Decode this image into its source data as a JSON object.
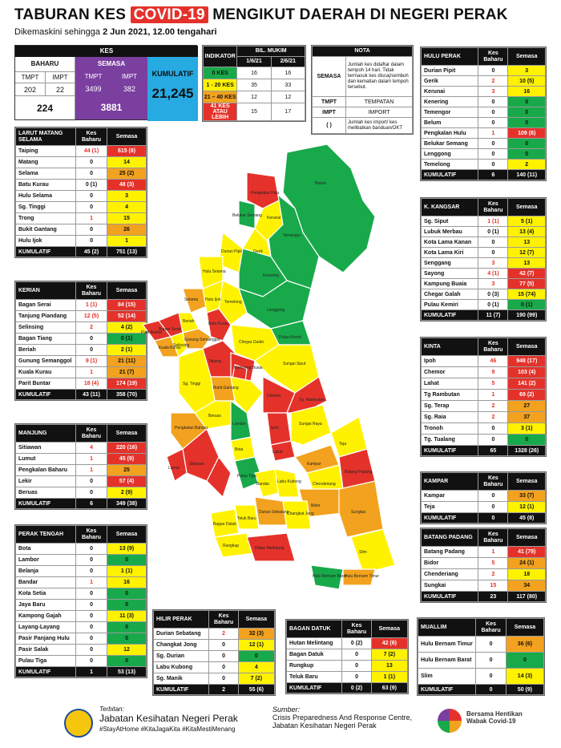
{
  "header": {
    "title_pre": "TABURAN KES",
    "title_hl": "COVID-19",
    "title_post": "MENGIKUT DAERAH DI NEGERI PERAK",
    "subtitle_pre": "Dikemaskini sehingga",
    "subtitle_bold": "2 Jun 2021, 12.00 tengahari"
  },
  "kes": {
    "title": "KES",
    "baharu": "BAHARU",
    "semasa": "SEMASA",
    "kumulatif_label": "KUMULATIF",
    "h_tmpt": "TMPT",
    "h_impt": "IMPT",
    "b_tmpt": "202",
    "b_impt": "22",
    "s_tmpt": "3499",
    "s_impt": "382",
    "b_total": "224",
    "s_total": "3881",
    "kumulatif": "21,245"
  },
  "indicator": {
    "h_ind": "INDIKATOR",
    "h_bil": "BIL. MUKIM",
    "d1": "1/6/21",
    "d2": "2/6/21",
    "rows": [
      {
        "label": "0 KES",
        "a": "16",
        "b": "16"
      },
      {
        "label": "1 - 20 KES",
        "a": "35",
        "b": "33"
      },
      {
        "label": "21 – 40 KES",
        "a": "12",
        "b": "12"
      },
      {
        "label": "41 KES ATAU LEBIH",
        "a": "15",
        "b": "17"
      }
    ]
  },
  "nota": {
    "title": "NOTA",
    "rows": [
      {
        "k": "SEMASA",
        "v": "Jumlah kes didaftar dalam tempoh 14 hari. Tidak termasuk kes discaj/sembuh dan kematian dalam tempoh tersebut."
      },
      {
        "k": "TMPT",
        "v": "TEMPATAN"
      },
      {
        "k": "IMPT",
        "v": "IMPORT"
      },
      {
        "k": "( )",
        "v": "Jumlah kes import/ kes melibatkan banduan/OKT"
      }
    ]
  },
  "col_baharu": "Kes Baharu",
  "col_semasa": "Semasa",
  "districts": {
    "larut": {
      "title": "LARUT MATANG SELAMA",
      "rows": [
        [
          "Taiping",
          "44 (1)",
          "615 (8)",
          "r"
        ],
        [
          "Matang",
          "0",
          "14",
          "y"
        ],
        [
          "Selama",
          "0",
          "25 (2)",
          "o"
        ],
        [
          "Batu Kurau",
          "0 (1)",
          "48 (3)",
          "r"
        ],
        [
          "Hulu Selama",
          "0",
          "3",
          "y"
        ],
        [
          "Sg. Tinggi",
          "0",
          "4",
          "y"
        ],
        [
          "Trong",
          "1",
          "15",
          "y"
        ],
        [
          "Bukit Gantang",
          "0",
          "26",
          "o"
        ],
        [
          "Hulu Ijok",
          "0",
          "1",
          "y"
        ]
      ],
      "total": [
        "KUMULATIF",
        "45 (2)",
        "751 (13)"
      ]
    },
    "kerian": {
      "title": "KERIAN",
      "rows": [
        [
          "Bagan Serai",
          "1 (1)",
          "84 (15)",
          "r"
        ],
        [
          "Tanjung Piandang",
          "12 (5)",
          "52 (14)",
          "r"
        ],
        [
          "Selinsing",
          "2",
          "4 (2)",
          "y"
        ],
        [
          "Bagan Tiang",
          "0",
          "0 (1)",
          "g"
        ],
        [
          "Beriah",
          "0",
          "2 (1)",
          "y"
        ],
        [
          "Gunung Semanggol",
          "9 (1)",
          "21 (11)",
          "o"
        ],
        [
          "Kuala Kurau",
          "1",
          "21 (7)",
          "o"
        ],
        [
          "Parit Buntar",
          "18 (4)",
          "174 (19)",
          "r"
        ]
      ],
      "total": [
        "KUMULATIF",
        "43 (11)",
        "358 (70)"
      ]
    },
    "manjung": {
      "title": "MANJUNG",
      "rows": [
        [
          "Sitiawan",
          "4",
          "220 (16)",
          "r"
        ],
        [
          "Lumut",
          "1",
          "45 (9)",
          "r"
        ],
        [
          "Pengkalan Baharu",
          "1",
          "25",
          "o"
        ],
        [
          "Lekir",
          "0",
          "57 (4)",
          "r"
        ],
        [
          "Beruas",
          "0",
          "2 (9)",
          "y"
        ]
      ],
      "total": [
        "KUMULATIF",
        "6",
        "349 (38)"
      ]
    },
    "perak_tengah": {
      "title": "PERAK TENGAH",
      "rows": [
        [
          "Bota",
          "0",
          "13 (9)",
          "y"
        ],
        [
          "Lambor",
          "0",
          "0",
          "g"
        ],
        [
          "Belanja",
          "0",
          "1 (1)",
          "y"
        ],
        [
          "Bandar",
          "1",
          "16",
          "y"
        ],
        [
          "Kota Setia",
          "0",
          "0",
          "g"
        ],
        [
          "Jaya Baru",
          "0",
          "0",
          "g"
        ],
        [
          "Kampong Gajah",
          "0",
          "11 (3)",
          "y"
        ],
        [
          "Layang-Layang",
          "0",
          "0",
          "g"
        ],
        [
          "Pasir Panjang Hulu",
          "0",
          "0",
          "g"
        ],
        [
          "Pasir Salak",
          "0",
          "12",
          "y"
        ],
        [
          "Pulau Tiga",
          "0",
          "0",
          "g"
        ]
      ],
      "total": [
        "KUMULATIF",
        "1",
        "53 (13)"
      ]
    },
    "hulu_perak": {
      "title": "HULU PERAK",
      "rows": [
        [
          "Durian Pipit",
          "0",
          "3",
          "y"
        ],
        [
          "Gerik",
          "2",
          "10 (5)",
          "y"
        ],
        [
          "Kerunai",
          "3",
          "16",
          "y"
        ],
        [
          "Kenering",
          "0",
          "0",
          "g"
        ],
        [
          "Temengor",
          "0",
          "0",
          "g"
        ],
        [
          "Belum",
          "0",
          "0",
          "g"
        ],
        [
          "Pengkalan Hulu",
          "1",
          "109 (6)",
          "r"
        ],
        [
          "Belukar Semang",
          "0",
          "0",
          "g"
        ],
        [
          "Lenggong",
          "0",
          "0",
          "g"
        ],
        [
          "Temelong",
          "0",
          "2",
          "y"
        ]
      ],
      "total": [
        "KUMULATIF",
        "6",
        "140 (11)"
      ]
    },
    "kkangsar": {
      "title": "K. KANGSAR",
      "rows": [
        [
          "Sg. Siput",
          "1 (1)",
          "5 (1)",
          "y"
        ],
        [
          "Lubuk Merbau",
          "0 (1)",
          "13 (4)",
          "y"
        ],
        [
          "Kota Lama Kanan",
          "0",
          "13",
          "y"
        ],
        [
          "Kota Lama Kiri",
          "0",
          "12 (7)",
          "y"
        ],
        [
          "Senggang",
          "3",
          "13",
          "y"
        ],
        [
          "Sayong",
          "4 (1)",
          "42 (7)",
          "r"
        ],
        [
          "Kampung Buaia",
          "3",
          "77 (5)",
          "r"
        ],
        [
          "Chegar Galah",
          "0 (3)",
          "15 (74)",
          "y"
        ],
        [
          "Pulau Kemiri",
          "0 (1)",
          "0 (1)",
          "g"
        ]
      ],
      "total": [
        "KUMULATIF",
        "11 (7)",
        "190 (99)"
      ]
    },
    "kinta": {
      "title": "KINTA",
      "rows": [
        [
          "Ipoh",
          "46",
          "948 (17)",
          "r"
        ],
        [
          "Chemor",
          "9",
          "103 (4)",
          "r"
        ],
        [
          "Lahat",
          "5",
          "141 (2)",
          "r"
        ],
        [
          "Tg Rambutan",
          "1",
          "69 (2)",
          "r"
        ],
        [
          "Sg. Terap",
          "2",
          "27",
          "o"
        ],
        [
          "Sg. Raia",
          "2",
          "37",
          "o"
        ],
        [
          "Tronoh",
          "0",
          "3 (1)",
          "y"
        ],
        [
          "Tg. Tualang",
          "0",
          "0",
          "g"
        ]
      ],
      "total": [
        "KUMULATIF",
        "65",
        "1328 (26)"
      ]
    },
    "kampar": {
      "title": "KAMPAR",
      "rows": [
        [
          "Kampar",
          "0",
          "33 (7)",
          "o"
        ],
        [
          "Teja",
          "0",
          "12 (1)",
          "y"
        ]
      ],
      "total": [
        "KUMULATIF",
        "0",
        "45 (8)"
      ]
    },
    "batang_padang": {
      "title": "BATANG PADANG",
      "rows": [
        [
          "Batang Padang",
          "1",
          "41 (79)",
          "r"
        ],
        [
          "Bidor",
          "5",
          "24 (1)",
          "o"
        ],
        [
          "Chenderiang",
          "2",
          "18",
          "y"
        ],
        [
          "Sungkai",
          "15",
          "34",
          "o"
        ]
      ],
      "total": [
        "KUMULATIF",
        "23",
        "117 (80)"
      ]
    },
    "hilir_perak": {
      "title": "HILIR PERAK",
      "rows": [
        [
          "Durian Sebatang",
          "2",
          "32 (3)",
          "o"
        ],
        [
          "Changkat Jong",
          "0",
          "12 (1)",
          "y"
        ],
        [
          "Sg. Durian",
          "0",
          "0",
          "g"
        ],
        [
          "Labu Kubong",
          "0",
          "4",
          "y"
        ],
        [
          "Sg. Manik",
          "0",
          "7 (2)",
          "y"
        ]
      ],
      "total": [
        "KUMULATIF",
        "2",
        "55 (6)"
      ]
    },
    "bagan_datuk": {
      "title": "BAGAN DATUK",
      "rows": [
        [
          "Hutan Melintang",
          "0 (2)",
          "42 (6)",
          "r"
        ],
        [
          "Bagan Datuk",
          "0",
          "7 (2)",
          "y"
        ],
        [
          "Rungkup",
          "0",
          "13",
          "y"
        ],
        [
          "Teluk Baru",
          "0",
          "1 (1)",
          "y"
        ]
      ],
      "total": [
        "KUMULATIF",
        "0 (2)",
        "63 (9)"
      ]
    },
    "muallim": {
      "title": "MUALLIM",
      "rows": [
        [
          "Hulu Bernam Timur",
          "0",
          "36 (6)",
          "o"
        ],
        [
          "Hulu Bernam Barat",
          "0",
          "0",
          "g"
        ],
        [
          "Slim",
          "0",
          "14 (3)",
          "y"
        ]
      ],
      "total": [
        "KUMULATIF",
        "0",
        "50 (9)"
      ]
    }
  },
  "map_labels": [
    "Belum",
    "Pengkalan Hulu",
    "Kerunai",
    "Belukar Semang",
    "Temengor",
    "Gerik",
    "Durian Pipit",
    "Kenering",
    "Hulu Selama",
    "Lenggong",
    "Temelong",
    "Selama",
    "Hulu Ijok",
    "Batu Kurau",
    "Beriah",
    "Bagan Serai",
    "Gunung Semanggol",
    "Kuala Kurau",
    "Selinsing",
    "Parit Buntar",
    "Pulau Kemiri",
    "Chegar Galah",
    "Taiping",
    "Kampong Buaia",
    "Sungai Siput",
    "Bukit Gantang",
    "Sg. Tinggi",
    "Chemor",
    "Tg. Rambutan",
    "Ipoh",
    "Sungai Raya",
    "Lahat",
    "Pengkalan Baharu",
    "Beruas",
    "Lambor",
    "Kampar",
    "Teja",
    "Lumut",
    "Sitiawan",
    "Bota",
    "Chenderiang",
    "Batang Padang",
    "Pulau Tiga",
    "Bandar",
    "Labu Kubong",
    "Bidor",
    "Durian Sebatang",
    "Changkat Jong",
    "Sungkai",
    "Bagan Datuk",
    "Teluk Baru",
    "Rungkup",
    "Hutan Melintang",
    "Slim",
    "Hulu Bernam Barat",
    "Hulu Bernam Timur"
  ],
  "footer": {
    "terbitan": "Terbitan:",
    "org": "Jabatan Kesihatan Negeri Perak",
    "tags": "#StayAtHome #KitaJagaKita #KitaMestiMenang",
    "sumber": "Sumber:",
    "src1": "Crisis Preparedness And Response Centre,",
    "src2": "Jabatan Kesihatan Negeri Perak",
    "logo": "Bersama Hentikan Wabak Covid-19"
  },
  "colors": {
    "red": "#e4322b",
    "orange": "#f2a21e",
    "yellow": "#fff200",
    "green": "#18a94a",
    "purple": "#7b3fa0",
    "blue": "#27a9e1"
  }
}
